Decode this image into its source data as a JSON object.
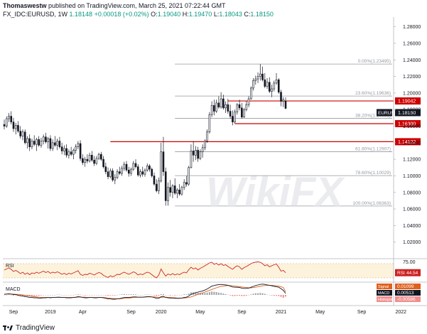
{
  "header": {
    "author": "Thomaswestw",
    "published": "published on TradingView.com, March 25, 2021 07:22:44 GMT",
    "symbol": "FX_IDC:EURUSD, 1W",
    "last": "1.18148",
    "change": "+0.00018 (+0.02%)",
    "o_label": "O:",
    "o": "1.19040",
    "h_label": "H:",
    "h": "1.19470",
    "l_label": "L:",
    "l": "1.18043",
    "c_label": "C:",
    "c": "1.18150"
  },
  "footer": {
    "brand": "TradingView",
    "logo": "tradingview-logo-icon"
  },
  "watermark": "WikiFX",
  "colors": {
    "up": "#ffffff",
    "down": "#131722",
    "support": "#cc0000",
    "fib": "#9598a1",
    "rsi": "#cc2222",
    "rsi_band": "#fdf3dc",
    "macd": "#131722",
    "signal": "#e0601c",
    "hist_pos": "#9fa3ad",
    "hist_neg": "#ef8f8f"
  },
  "chart_data": [
    {
      "type": "candlestick",
      "ylim": [
        1.0,
        1.29
      ],
      "y_ticks": [
        "1.28000",
        "1.26000",
        "1.24000",
        "1.22000",
        "1.20000",
        "1.18000",
        "1.16000",
        "1.14000",
        "1.12000",
        "1.10000",
        "1.08000",
        "1.06000",
        "1.04000",
        "1.02000"
      ],
      "x_ticks": [
        "Sep",
        "2019",
        "Apr",
        "Sep",
        "2020",
        "May",
        "Sep",
        "2021",
        "May",
        "Sep",
        "2022"
      ],
      "fib_levels": [
        {
          "label": "0.00%(1.23495)",
          "value": 1.23495
        },
        {
          "label": "23.60%(1.19636)",
          "value": 1.19636
        },
        {
          "label": "38.20%(1.16951)",
          "value": 1.16951
        },
        {
          "label": "61.80%(1.12907)",
          "value": 1.12907
        },
        {
          "label": "78.60%(1.10029)",
          "value": 1.10029
        },
        {
          "label": "100.00%(1.06363)",
          "value": 1.06363
        }
      ],
      "support_levels": [
        {
          "label": "1.19042",
          "value": 1.19042
        },
        {
          "label": "1.16300",
          "value": 1.163
        },
        {
          "label": "1.14122",
          "value": 1.14122
        }
      ],
      "price_badge": {
        "label": "EURUSD",
        "value": "1.18150"
      },
      "candles": [
        [
          1.162,
          1.168,
          1.156,
          1.16
        ],
        [
          1.16,
          1.172,
          1.158,
          1.169
        ],
        [
          1.169,
          1.176,
          1.165,
          1.172
        ],
        [
          1.172,
          1.178,
          1.162,
          1.165
        ],
        [
          1.165,
          1.17,
          1.153,
          1.157
        ],
        [
          1.157,
          1.164,
          1.15,
          1.161
        ],
        [
          1.161,
          1.166,
          1.152,
          1.154
        ],
        [
          1.154,
          1.16,
          1.145,
          1.148
        ],
        [
          1.148,
          1.156,
          1.143,
          1.153
        ],
        [
          1.153,
          1.156,
          1.138,
          1.14
        ],
        [
          1.14,
          1.148,
          1.133,
          1.145
        ],
        [
          1.145,
          1.15,
          1.13,
          1.135
        ],
        [
          1.135,
          1.145,
          1.132,
          1.142
        ],
        [
          1.142,
          1.149,
          1.136,
          1.138
        ],
        [
          1.138,
          1.146,
          1.13,
          1.144
        ],
        [
          1.144,
          1.148,
          1.135,
          1.137
        ],
        [
          1.137,
          1.146,
          1.134,
          1.142
        ],
        [
          1.142,
          1.15,
          1.138,
          1.147
        ],
        [
          1.147,
          1.152,
          1.139,
          1.141
        ],
        [
          1.141,
          1.147,
          1.133,
          1.145
        ],
        [
          1.145,
          1.149,
          1.13,
          1.133
        ],
        [
          1.133,
          1.144,
          1.13,
          1.14
        ],
        [
          1.14,
          1.148,
          1.135,
          1.137
        ],
        [
          1.137,
          1.145,
          1.131,
          1.142
        ],
        [
          1.142,
          1.147,
          1.133,
          1.135
        ],
        [
          1.135,
          1.14,
          1.126,
          1.13
        ],
        [
          1.13,
          1.137,
          1.125,
          1.133
        ],
        [
          1.133,
          1.138,
          1.122,
          1.125
        ],
        [
          1.125,
          1.132,
          1.121,
          1.129
        ],
        [
          1.129,
          1.135,
          1.124,
          1.126
        ],
        [
          1.126,
          1.133,
          1.12,
          1.131
        ],
        [
          1.131,
          1.138,
          1.127,
          1.135
        ],
        [
          1.135,
          1.142,
          1.132,
          1.139
        ],
        [
          1.139,
          1.143,
          1.118,
          1.121
        ],
        [
          1.121,
          1.126,
          1.113,
          1.116
        ],
        [
          1.116,
          1.123,
          1.111,
          1.12
        ],
        [
          1.12,
          1.126,
          1.115,
          1.118
        ],
        [
          1.118,
          1.128,
          1.116,
          1.125
        ],
        [
          1.125,
          1.13,
          1.117,
          1.119
        ],
        [
          1.119,
          1.124,
          1.112,
          1.115
        ],
        [
          1.115,
          1.124,
          1.113,
          1.121
        ],
        [
          1.121,
          1.128,
          1.119,
          1.126
        ],
        [
          1.126,
          1.129,
          1.118,
          1.12
        ],
        [
          1.12,
          1.124,
          1.109,
          1.111
        ],
        [
          1.111,
          1.116,
          1.102,
          1.105
        ],
        [
          1.105,
          1.11,
          1.096,
          1.099
        ],
        [
          1.099,
          1.109,
          1.097,
          1.106
        ],
        [
          1.106,
          1.109,
          1.093,
          1.095
        ],
        [
          1.095,
          1.102,
          1.09,
          1.098
        ],
        [
          1.098,
          1.108,
          1.096,
          1.105
        ],
        [
          1.105,
          1.111,
          1.101,
          1.103
        ],
        [
          1.103,
          1.112,
          1.1,
          1.109
        ],
        [
          1.109,
          1.117,
          1.106,
          1.114
        ],
        [
          1.114,
          1.118,
          1.105,
          1.107
        ],
        [
          1.107,
          1.111,
          1.099,
          1.103
        ],
        [
          1.103,
          1.11,
          1.1,
          1.108
        ],
        [
          1.108,
          1.118,
          1.106,
          1.115
        ],
        [
          1.115,
          1.12,
          1.109,
          1.111
        ],
        [
          1.111,
          1.114,
          1.099,
          1.101
        ],
        [
          1.101,
          1.108,
          1.098,
          1.105
        ],
        [
          1.105,
          1.111,
          1.099,
          1.102
        ],
        [
          1.102,
          1.109,
          1.099,
          1.107
        ],
        [
          1.107,
          1.115,
          1.105,
          1.112
        ],
        [
          1.112,
          1.114,
          1.105,
          1.108
        ],
        [
          1.108,
          1.11,
          1.098,
          1.1
        ],
        [
          1.1,
          1.104,
          1.088,
          1.09
        ],
        [
          1.09,
          1.096,
          1.08,
          1.082
        ],
        [
          1.082,
          1.098,
          1.078,
          1.094
        ],
        [
          1.094,
          1.14,
          1.092,
          1.129
        ],
        [
          1.129,
          1.147,
          1.1,
          1.105
        ],
        [
          1.105,
          1.11,
          1.064,
          1.07
        ],
        [
          1.07,
          1.092,
          1.064,
          1.086
        ],
        [
          1.086,
          1.095,
          1.075,
          1.08
        ],
        [
          1.08,
          1.09,
          1.073,
          1.088
        ],
        [
          1.088,
          1.097,
          1.077,
          1.079
        ],
        [
          1.079,
          1.085,
          1.073,
          1.083
        ],
        [
          1.083,
          1.09,
          1.076,
          1.078
        ],
        [
          1.078,
          1.088,
          1.076,
          1.086
        ],
        [
          1.086,
          1.096,
          1.083,
          1.092
        ],
        [
          1.092,
          1.1,
          1.087,
          1.09
        ],
        [
          1.09,
          1.112,
          1.088,
          1.11
        ],
        [
          1.11,
          1.138,
          1.109,
          1.13
        ],
        [
          1.13,
          1.142,
          1.117,
          1.125
        ],
        [
          1.125,
          1.136,
          1.119,
          1.131
        ],
        [
          1.131,
          1.135,
          1.117,
          1.121
        ],
        [
          1.121,
          1.132,
          1.119,
          1.129
        ],
        [
          1.129,
          1.138,
          1.122,
          1.134
        ],
        [
          1.134,
          1.144,
          1.131,
          1.142
        ],
        [
          1.142,
          1.156,
          1.14,
          1.153
        ],
        [
          1.153,
          1.177,
          1.151,
          1.174
        ],
        [
          1.174,
          1.19,
          1.171,
          1.185
        ],
        [
          1.185,
          1.192,
          1.173,
          1.178
        ],
        [
          1.178,
          1.192,
          1.176,
          1.188
        ],
        [
          1.188,
          1.196,
          1.181,
          1.183
        ],
        [
          1.183,
          1.201,
          1.181,
          1.193
        ],
        [
          1.193,
          1.198,
          1.18,
          1.182
        ],
        [
          1.182,
          1.19,
          1.176,
          1.186
        ],
        [
          1.186,
          1.193,
          1.175,
          1.178
        ],
        [
          1.178,
          1.186,
          1.169,
          1.172
        ],
        [
          1.172,
          1.179,
          1.161,
          1.165
        ],
        [
          1.165,
          1.18,
          1.163,
          1.177
        ],
        [
          1.177,
          1.188,
          1.174,
          1.186
        ],
        [
          1.186,
          1.192,
          1.179,
          1.182
        ],
        [
          1.182,
          1.188,
          1.169,
          1.171
        ],
        [
          1.171,
          1.182,
          1.17,
          1.18
        ],
        [
          1.18,
          1.19,
          1.178,
          1.186
        ],
        [
          1.186,
          1.196,
          1.183,
          1.193
        ],
        [
          1.193,
          1.208,
          1.192,
          1.206
        ],
        [
          1.206,
          1.218,
          1.203,
          1.215
        ],
        [
          1.215,
          1.221,
          1.21,
          1.217
        ],
        [
          1.217,
          1.225,
          1.212,
          1.22
        ],
        [
          1.22,
          1.235,
          1.215,
          1.223
        ],
        [
          1.223,
          1.232,
          1.214,
          1.216
        ],
        [
          1.216,
          1.224,
          1.206,
          1.208
        ],
        [
          1.208,
          1.218,
          1.205,
          1.213
        ],
        [
          1.213,
          1.219,
          1.2,
          1.202
        ],
        [
          1.202,
          1.21,
          1.195,
          1.205
        ],
        [
          1.205,
          1.215,
          1.202,
          1.212
        ],
        [
          1.212,
          1.224,
          1.21,
          1.216
        ],
        [
          1.216,
          1.218,
          1.199,
          1.201
        ],
        [
          1.201,
          1.204,
          1.184,
          1.19
        ],
        [
          1.19,
          1.195,
          1.183,
          1.192
        ],
        [
          1.1904,
          1.1947,
          1.1804,
          1.1815
        ]
      ]
    },
    {
      "type": "line",
      "name": "RSI",
      "value_label": "44.54",
      "ylim": [
        20,
        80
      ],
      "band": [
        30,
        70
      ],
      "y_ticks": [
        "75.00"
      ],
      "values": [
        52,
        55,
        58,
        54,
        48,
        51,
        47,
        42,
        46,
        40,
        44,
        39,
        44,
        42,
        46,
        43,
        46,
        49,
        45,
        48,
        43,
        46,
        44,
        47,
        44,
        40,
        43,
        39,
        43,
        41,
        44,
        47,
        50,
        40,
        37,
        40,
        39,
        43,
        41,
        38,
        42,
        45,
        43,
        37,
        34,
        31,
        36,
        33,
        36,
        40,
        39,
        43,
        46,
        43,
        40,
        43,
        47,
        44,
        38,
        41,
        39,
        43,
        46,
        44,
        39,
        34,
        30,
        38,
        55,
        44,
        35,
        41,
        38,
        42,
        38,
        41,
        39,
        43,
        46,
        44,
        53,
        60,
        55,
        58,
        52,
        57,
        60,
        64,
        68,
        72,
        74,
        68,
        71,
        66,
        70,
        65,
        67,
        62,
        58,
        54,
        60,
        64,
        61,
        54,
        59,
        62,
        66,
        70,
        73,
        74,
        75,
        74,
        70,
        64,
        67,
        61,
        64,
        67,
        69,
        60,
        49,
        51,
        44.54
      ]
    },
    {
      "type": "line",
      "name": "MACD",
      "legend": [
        {
          "label": "Signal",
          "value": "0.01099"
        },
        {
          "label": "MACD",
          "value": "0.00513"
        },
        {
          "label": "Histogram",
          "value": "-0.00586"
        }
      ],
      "ylim": [
        -0.035,
        0.04
      ],
      "macd": [
        0.002,
        0.003,
        0.004,
        0.003,
        0.001,
        0.001,
        -0.001,
        -0.003,
        -0.004,
        -0.006,
        -0.007,
        -0.009,
        -0.009,
        -0.01,
        -0.01,
        -0.011,
        -0.011,
        -0.01,
        -0.01,
        -0.009,
        -0.01,
        -0.009,
        -0.009,
        -0.008,
        -0.008,
        -0.009,
        -0.009,
        -0.01,
        -0.01,
        -0.01,
        -0.009,
        -0.008,
        -0.006,
        -0.007,
        -0.009,
        -0.01,
        -0.01,
        -0.009,
        -0.009,
        -0.01,
        -0.01,
        -0.009,
        -0.009,
        -0.01,
        -0.012,
        -0.014,
        -0.014,
        -0.015,
        -0.015,
        -0.014,
        -0.013,
        -0.011,
        -0.009,
        -0.009,
        -0.009,
        -0.008,
        -0.007,
        -0.007,
        -0.008,
        -0.008,
        -0.008,
        -0.007,
        -0.006,
        -0.006,
        -0.007,
        -0.009,
        -0.012,
        -0.012,
        -0.006,
        -0.005,
        -0.009,
        -0.01,
        -0.011,
        -0.011,
        -0.012,
        -0.012,
        -0.012,
        -0.011,
        -0.009,
        -0.008,
        -0.004,
        0.002,
        0.005,
        0.008,
        0.01,
        0.012,
        0.014,
        0.017,
        0.021,
        0.026,
        0.031,
        0.033,
        0.035,
        0.036,
        0.037,
        0.036,
        0.035,
        0.034,
        0.031,
        0.028,
        0.027,
        0.027,
        0.026,
        0.024,
        0.023,
        0.023,
        0.024,
        0.027,
        0.03,
        0.033,
        0.035,
        0.037,
        0.038,
        0.037,
        0.035,
        0.034,
        0.032,
        0.03,
        0.029,
        0.027,
        0.022,
        0.016,
        0.00513
      ],
      "signal": [
        0.003,
        0.003,
        0.003,
        0.003,
        0.003,
        0.002,
        0.002,
        0.001,
        0.0,
        -0.001,
        -0.002,
        -0.004,
        -0.005,
        -0.006,
        -0.007,
        -0.008,
        -0.009,
        -0.009,
        -0.009,
        -0.009,
        -0.009,
        -0.009,
        -0.009,
        -0.009,
        -0.009,
        -0.009,
        -0.009,
        -0.009,
        -0.009,
        -0.009,
        -0.009,
        -0.009,
        -0.008,
        -0.008,
        -0.008,
        -0.008,
        -0.009,
        -0.009,
        -0.009,
        -0.009,
        -0.009,
        -0.009,
        -0.009,
        -0.009,
        -0.01,
        -0.011,
        -0.012,
        -0.013,
        -0.013,
        -0.014,
        -0.014,
        -0.013,
        -0.012,
        -0.011,
        -0.011,
        -0.01,
        -0.009,
        -0.009,
        -0.008,
        -0.008,
        -0.008,
        -0.008,
        -0.007,
        -0.007,
        -0.007,
        -0.007,
        -0.008,
        -0.009,
        -0.009,
        -0.008,
        -0.008,
        -0.009,
        -0.009,
        -0.01,
        -0.01,
        -0.011,
        -0.011,
        -0.011,
        -0.011,
        -0.01,
        -0.009,
        -0.007,
        -0.004,
        -0.001,
        0.002,
        0.005,
        0.007,
        0.01,
        0.013,
        0.016,
        0.019,
        0.022,
        0.025,
        0.028,
        0.03,
        0.031,
        0.032,
        0.033,
        0.033,
        0.032,
        0.031,
        0.03,
        0.029,
        0.028,
        0.027,
        0.026,
        0.025,
        0.025,
        0.026,
        0.027,
        0.029,
        0.03,
        0.032,
        0.033,
        0.034,
        0.034,
        0.034,
        0.033,
        0.032,
        0.031,
        0.029,
        0.026,
        0.01099
      ]
    }
  ]
}
